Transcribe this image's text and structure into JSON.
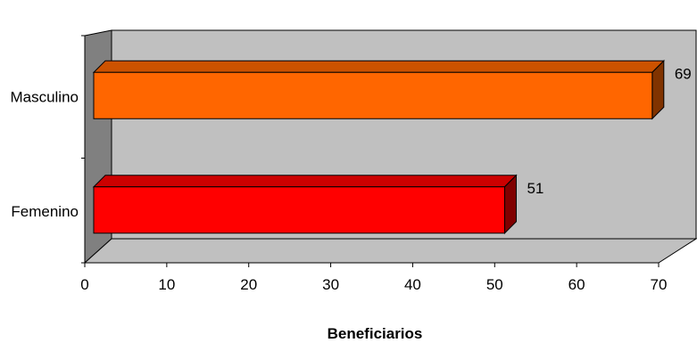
{
  "chart_data": {
    "type": "bar",
    "orientation": "horizontal",
    "three_d": true,
    "categories": [
      "Masculino",
      "Femenino"
    ],
    "values": [
      69,
      51
    ],
    "data_labels": [
      "69",
      "51"
    ],
    "bar_colors": [
      "#FF6600",
      "#FF0000"
    ],
    "xlabel": "Beneficiarios",
    "ylabel": "",
    "xlim": [
      0,
      70
    ],
    "x_ticks": [
      "0",
      "10",
      "20",
      "30",
      "40",
      "50",
      "60",
      "70"
    ],
    "grid": false,
    "legend": "none"
  }
}
